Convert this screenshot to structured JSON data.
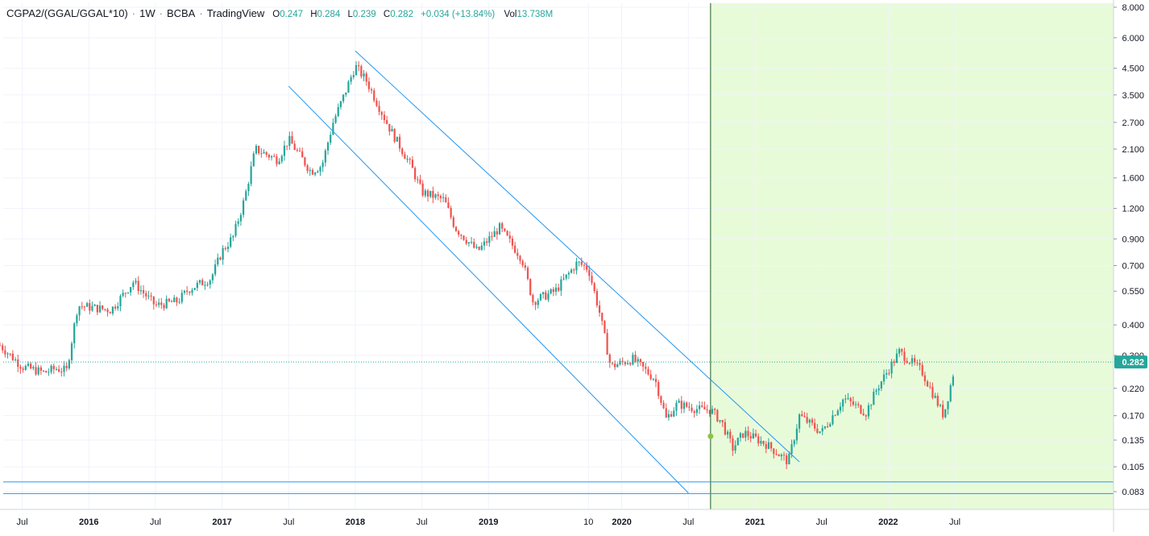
{
  "legend": {
    "symbol": "CGPA2/(GGAL/GGAL*10)",
    "interval": "1W",
    "exchange": "BCBA",
    "source": "TradingView",
    "o_key": "O",
    "o": "0.247",
    "h_key": "H",
    "h": "0.284",
    "l_key": "L",
    "l": "0.239",
    "c_key": "C",
    "c": "0.282",
    "change": "+0.034 (+13.84%)",
    "vol_key": "Vol",
    "vol": "13.738M"
  },
  "colors": {
    "up": "#26a69a",
    "down": "#ef5350",
    "trendline": "#2196f3",
    "highlight_zone": "#e8fbd9",
    "vertical_line": "#1b5e20",
    "price_badge": "#26a69a",
    "grid": "#f0f3fa"
  },
  "chart_data": {
    "type": "candlestick",
    "scale": "log",
    "y_ticks": [
      "8.000",
      "6.000",
      "4.500",
      "3.500",
      "2.700",
      "2.100",
      "1.600",
      "1.200",
      "0.900",
      "0.700",
      "0.550",
      "0.400",
      "0.300",
      "0.220",
      "0.170",
      "0.135",
      "0.105",
      "0.083"
    ],
    "x_ticks": [
      "Jul",
      "2016",
      "Jul",
      "2017",
      "Jul",
      "2018",
      "Jul",
      "2019",
      "10",
      "2020",
      "Jul",
      "2021",
      "Jul",
      "2022",
      "Jul"
    ],
    "last_price": "0.282",
    "grid": true,
    "candles_anchor": [
      [
        "2015-05",
        0.33
      ],
      [
        "2015-07",
        0.27
      ],
      [
        "2015-09",
        0.255
      ],
      [
        "2015-10",
        0.265
      ],
      [
        "2015-11",
        0.26
      ],
      [
        "2015-12",
        0.48
      ],
      [
        "2016-03",
        0.46
      ],
      [
        "2016-05",
        0.6
      ],
      [
        "2016-07",
        0.48
      ],
      [
        "2016-09",
        0.5
      ],
      [
        "2016-10",
        0.56
      ],
      [
        "2016-12",
        0.62
      ],
      [
        "2017-01",
        0.8
      ],
      [
        "2017-02",
        0.92
      ],
      [
        "2017-03",
        1.3
      ],
      [
        "2017-04",
        2.1
      ],
      [
        "2017-06",
        1.9
      ],
      [
        "2017-07",
        2.3
      ],
      [
        "2017-09",
        1.7
      ],
      [
        "2017-10",
        1.8
      ],
      [
        "2017-11",
        2.7
      ],
      [
        "2017-12",
        3.5
      ],
      [
        "2018-01",
        4.6
      ],
      [
        "2018-02",
        4.0
      ],
      [
        "2018-04",
        2.6
      ],
      [
        "2018-06",
        1.8
      ],
      [
        "2018-07",
        1.4
      ],
      [
        "2018-09",
        1.3
      ],
      [
        "2018-10",
        1.0
      ],
      [
        "2018-12",
        0.8
      ],
      [
        "2019-02",
        1.0
      ],
      [
        "2019-04",
        0.75
      ],
      [
        "2019-05",
        0.5
      ],
      [
        "2019-07",
        0.55
      ],
      [
        "2019-09",
        0.72
      ],
      [
        "2019-10",
        0.68
      ],
      [
        "2019-11",
        0.45
      ],
      [
        "2019-12",
        0.27
      ],
      [
        "2020-02",
        0.29
      ],
      [
        "2020-04",
        0.24
      ],
      [
        "2020-05",
        0.165
      ],
      [
        "2020-06",
        0.19
      ],
      [
        "2020-08",
        0.18
      ],
      [
        "2020-09",
        0.18
      ],
      [
        "2020-10",
        0.16
      ],
      [
        "2020-11",
        0.125
      ],
      [
        "2020-12",
        0.145
      ],
      [
        "2021-02",
        0.13
      ],
      [
        "2021-04",
        0.11
      ],
      [
        "2021-05",
        0.17
      ],
      [
        "2021-07",
        0.145
      ],
      [
        "2021-09",
        0.2
      ],
      [
        "2021-11",
        0.175
      ],
      [
        "2021-12",
        0.22
      ],
      [
        "2022-02",
        0.31
      ],
      [
        "2022-04",
        0.26
      ],
      [
        "2022-06",
        0.17
      ],
      [
        "2022-07",
        0.27
      ]
    ],
    "annotations": {
      "highlight_zone_start": "2020-09",
      "horizontal_lines": [
        0.091,
        0.0815
      ],
      "channel_upper": [
        [
          "2018-01",
          5.3
        ],
        [
          "2021-05",
          0.11
        ]
      ],
      "channel_lower": [
        [
          "2017-07",
          3.8
        ],
        [
          "2020-07",
          0.082
        ]
      ],
      "marker": [
        "2020-09",
        0.14
      ]
    }
  }
}
